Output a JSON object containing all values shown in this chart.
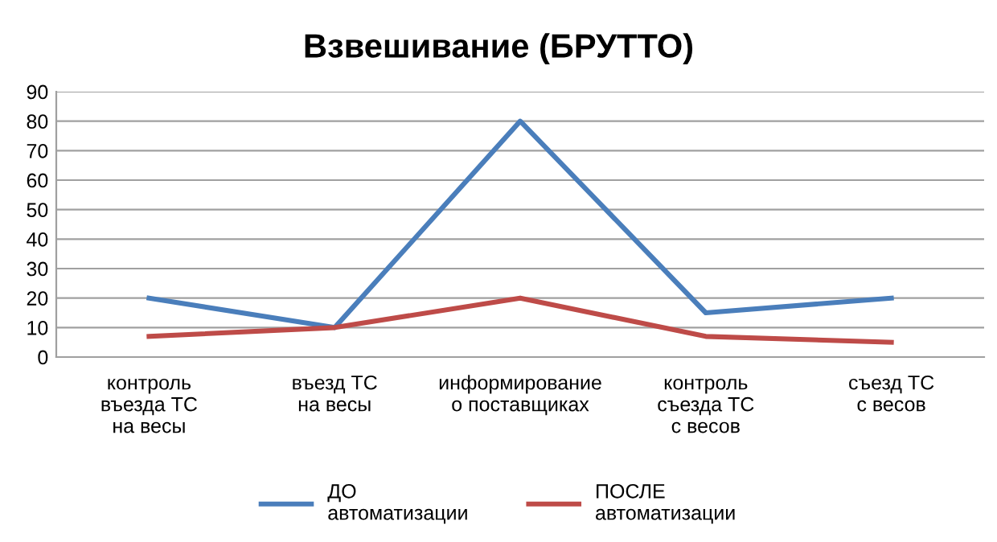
{
  "chart_data": {
    "type": "line",
    "title": "Взвешивание (БРУТТО)",
    "categories": [
      "контроль\nвъезда ТС\nна весы",
      "въезд ТС\nна весы",
      "информирование\nо поставщиках",
      "контроль\nсъезда ТС\nс весов",
      "съезд ТС\nс весов"
    ],
    "series": [
      {
        "name": "ДО\nавтоматизации",
        "color": "#4a7ebb",
        "values": [
          20,
          10,
          80,
          15,
          20
        ]
      },
      {
        "name": "ПОСЛЕ\nавтоматизации",
        "color": "#be4b48",
        "values": [
          7,
          10,
          20,
          7,
          5
        ]
      }
    ],
    "ylim": [
      0,
      90
    ],
    "yticks": [
      0,
      10,
      20,
      30,
      40,
      50,
      60,
      70,
      80,
      90
    ],
    "grid": "y",
    "legend": "bottom",
    "marker": "none",
    "line_style": "solid"
  }
}
